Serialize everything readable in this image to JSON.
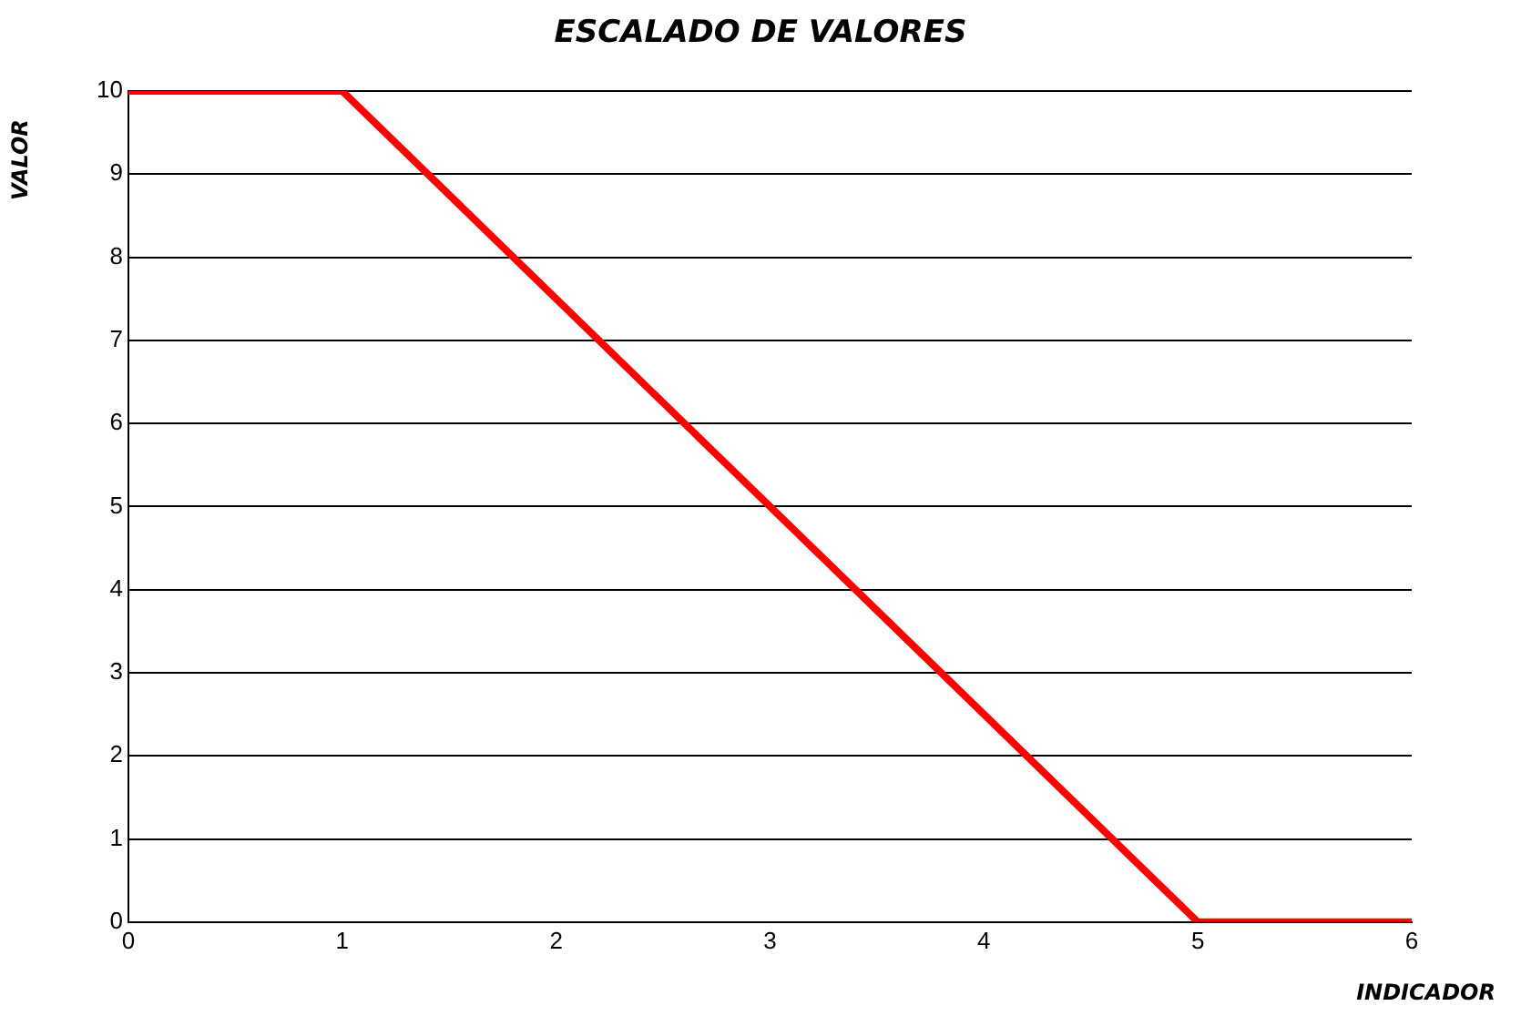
{
  "chart_data": {
    "type": "line",
    "title": "ESCALADO DE VALORES",
    "xlabel": "INDICADOR",
    "ylabel": "VALOR",
    "x": [
      0,
      1,
      5,
      6
    ],
    "series": [
      {
        "color": "#ff0000",
        "values": [
          10,
          10,
          0,
          0
        ]
      }
    ],
    "xlim": [
      0,
      6
    ],
    "xticks": [
      0,
      1,
      2,
      3,
      4,
      5,
      6
    ],
    "ylim": [
      0,
      10
    ],
    "yticks": [
      0,
      1,
      2,
      3,
      4,
      5,
      6,
      7,
      8,
      9,
      10
    ],
    "grid": "y",
    "legend": false,
    "marker": "none",
    "line_style": "solid"
  }
}
